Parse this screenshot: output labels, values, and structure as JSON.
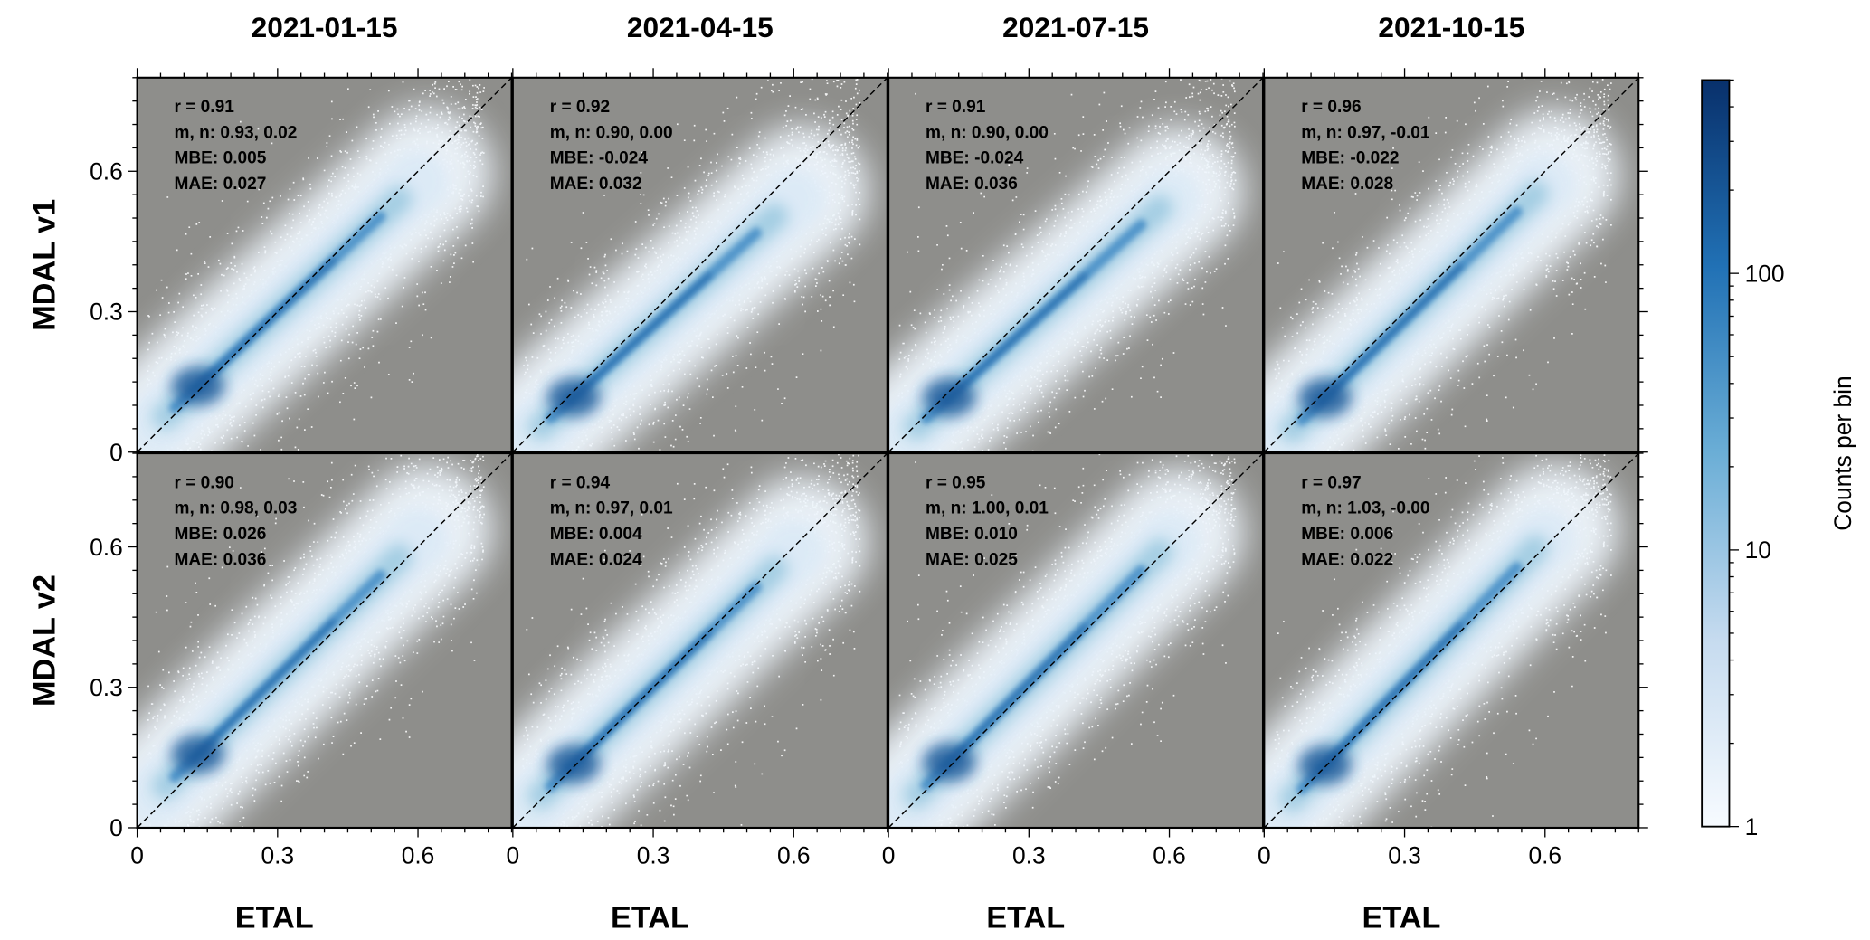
{
  "chart_data": {
    "type": "heatmap",
    "subtype": "2D histogram density scatter grid",
    "columns": [
      "2021-01-15",
      "2021-04-15",
      "2021-07-15",
      "2021-10-15"
    ],
    "rows": [
      "MDAL v1",
      "MDAL v2"
    ],
    "xlabel": "ETAL",
    "xlim": [
      0,
      0.8
    ],
    "ylim": [
      0,
      0.8
    ],
    "xticks": [
      0,
      0.3,
      0.6
    ],
    "xtick_labels": [
      "0",
      "0.3",
      "0.6"
    ],
    "yticks": [
      0,
      0.3,
      0.6
    ],
    "ytick_labels": [
      "0",
      "0.3",
      "0.6"
    ],
    "reference_line": "1:1 dashed",
    "background_color": "#8e8e8b",
    "panels": [
      {
        "row": 0,
        "col": 0,
        "r": 0.91,
        "m": 0.93,
        "n": 0.02,
        "mbe": 0.005,
        "mae": 0.027,
        "stats": [
          "r = 0.91",
          "m, n: 0.93, 0.02",
          "MBE: 0.005",
          "MAE: 0.027"
        ]
      },
      {
        "row": 0,
        "col": 1,
        "r": 0.92,
        "m": 0.9,
        "n": 0.0,
        "mbe": -0.024,
        "mae": 0.032,
        "stats": [
          "r = 0.92",
          "m, n: 0.90, 0.00",
          "MBE: -0.024",
          "MAE: 0.032"
        ]
      },
      {
        "row": 0,
        "col": 2,
        "r": 0.91,
        "m": 0.9,
        "n": 0.0,
        "mbe": -0.024,
        "mae": 0.036,
        "stats": [
          "r = 0.91",
          "m, n: 0.90, 0.00",
          "MBE: -0.024",
          "MAE: 0.036"
        ]
      },
      {
        "row": 0,
        "col": 3,
        "r": 0.96,
        "m": 0.97,
        "n": -0.01,
        "mbe": -0.022,
        "mae": 0.028,
        "stats": [
          "r = 0.96",
          "m, n: 0.97, -0.01",
          "MBE: -0.022",
          "MAE: 0.028"
        ]
      },
      {
        "row": 1,
        "col": 0,
        "r": 0.9,
        "m": 0.98,
        "n": 0.03,
        "mbe": 0.026,
        "mae": 0.036,
        "stats": [
          "r = 0.90",
          "m, n: 0.98, 0.03",
          "MBE: 0.026",
          "MAE: 0.036"
        ]
      },
      {
        "row": 1,
        "col": 1,
        "r": 0.94,
        "m": 0.97,
        "n": 0.01,
        "mbe": 0.004,
        "mae": 0.024,
        "stats": [
          "r = 0.94",
          "m, n: 0.97, 0.01",
          "MBE: 0.004",
          "MAE: 0.024"
        ]
      },
      {
        "row": 1,
        "col": 2,
        "r": 0.95,
        "m": 1.0,
        "n": 0.01,
        "mbe": 0.01,
        "mae": 0.025,
        "stats": [
          "r = 0.95",
          "m, n: 1.00, 0.01",
          "MBE: 0.010",
          "MAE: 0.025"
        ]
      },
      {
        "row": 1,
        "col": 3,
        "r": 0.97,
        "m": 1.03,
        "n": -0.0,
        "mbe": 0.006,
        "mae": 0.022,
        "stats": [
          "r = 0.97",
          "m, n: 1.03, -0.00",
          "MBE: 0.006",
          "MAE: 0.022"
        ]
      }
    ],
    "colorbar": {
      "label": "Counts per bin",
      "scale": "log",
      "range": [
        1,
        500
      ],
      "ticks": [
        1,
        10,
        100
      ],
      "tick_labels": [
        "1",
        "10",
        "100"
      ],
      "colormap": "Blues",
      "colors": [
        "#f7fbff",
        "#c6dbef",
        "#6baed6",
        "#2171b5",
        "#08306b"
      ]
    }
  }
}
